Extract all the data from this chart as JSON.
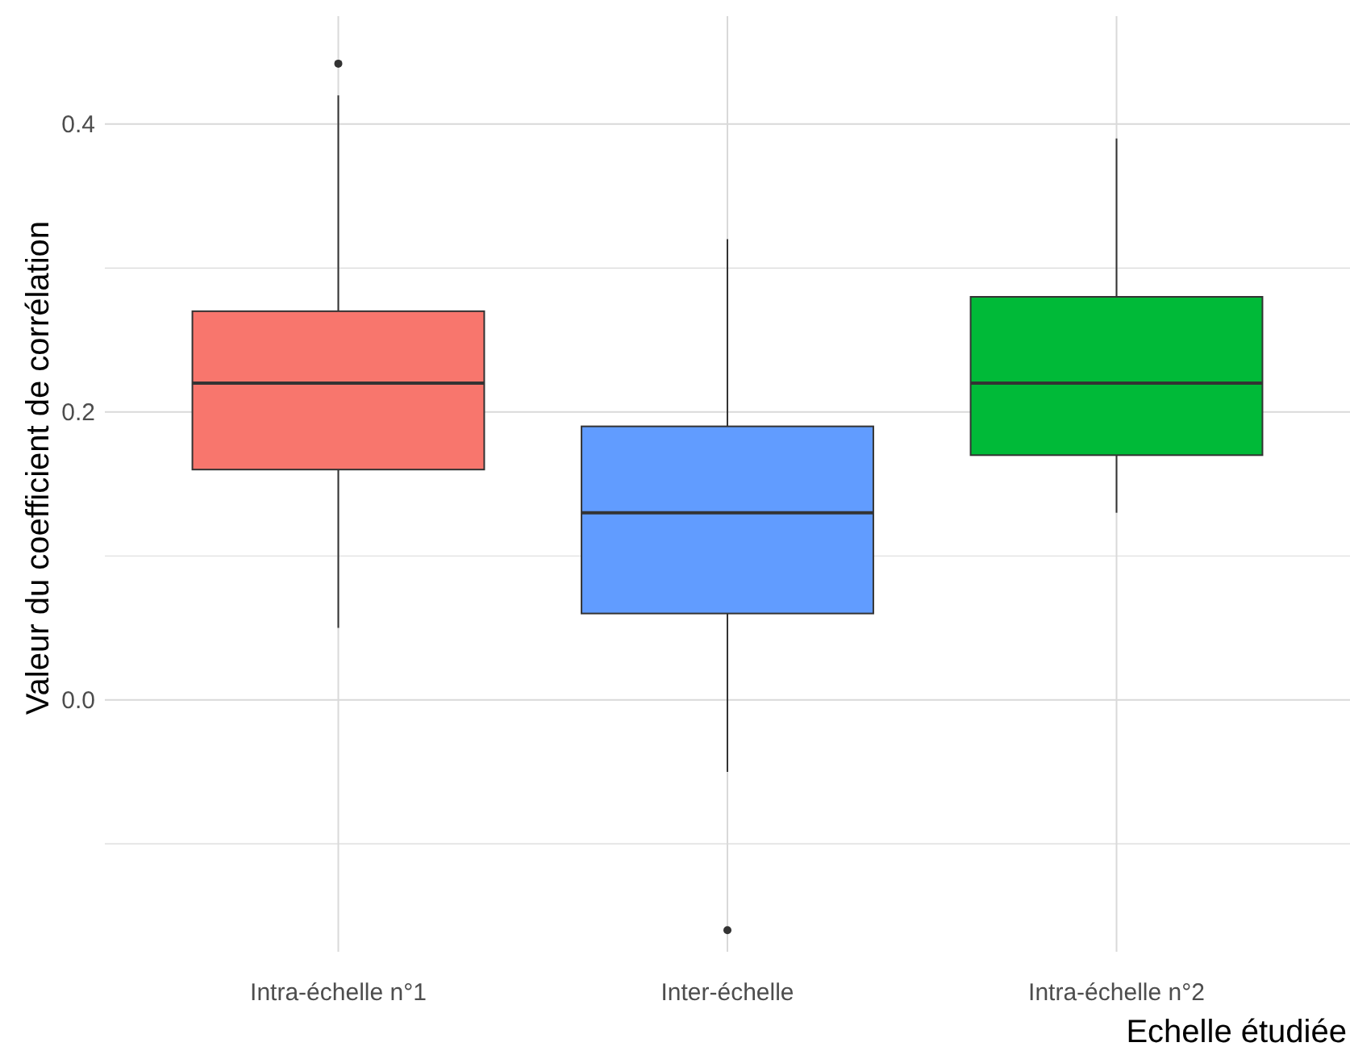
{
  "chart_data": {
    "type": "box",
    "xlabel": "Echelle étudiée",
    "ylabel": "Valeur du coefficient de corrélation",
    "categories": [
      "Intra-échelle n°1",
      "Inter-échelle",
      "Intra-échelle n°2"
    ],
    "boxes": [
      {
        "low": 0.05,
        "q1": 0.16,
        "median": 0.22,
        "q3": 0.27,
        "high": 0.42,
        "outliers": [
          0.442
        ]
      },
      {
        "low": -0.05,
        "q1": 0.06,
        "median": 0.13,
        "q3": 0.19,
        "high": 0.32,
        "outliers": [
          -0.16
        ]
      },
      {
        "low": 0.13,
        "q1": 0.17,
        "median": 0.22,
        "q3": 0.28,
        "high": 0.39
      }
    ],
    "colors": [
      "#f8766d",
      "#619cff",
      "#00ba38"
    ],
    "ylim": [
      -0.175,
      0.475
    ],
    "yticks": [
      {
        "value": -0.1,
        "label": null
      },
      {
        "value": 0.0,
        "label": "0.0"
      },
      {
        "value": 0.1,
        "label": null
      },
      {
        "value": 0.2,
        "label": "0.2"
      },
      {
        "value": 0.3,
        "label": null
      },
      {
        "value": 0.4,
        "label": "0.4"
      }
    ],
    "grid": true
  }
}
